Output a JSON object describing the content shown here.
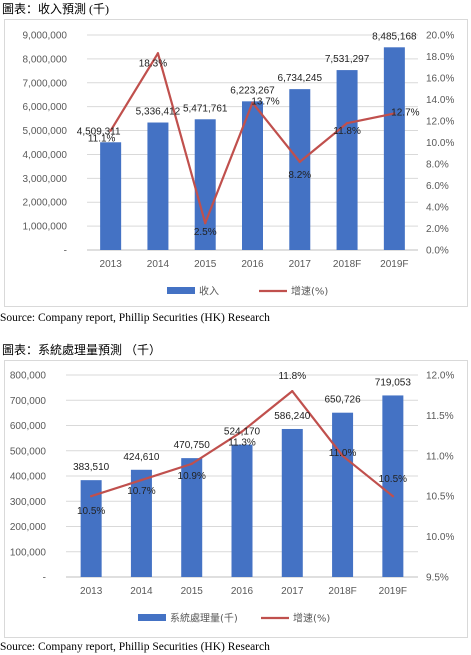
{
  "chart_data": [
    {
      "type": "bar",
      "title": "圖表：收入預測 (千)",
      "categories": [
        "2013",
        "2014",
        "2015",
        "2016",
        "2017",
        "2018F",
        "2019F"
      ],
      "series": [
        {
          "name": "收入",
          "type": "bar",
          "axis": "left",
          "values": [
            4509311,
            5336412,
            5471761,
            6223267,
            6734245,
            7531297,
            8485168
          ],
          "labels": [
            "4,509,311",
            "5,336,412",
            "5,471,761",
            "6,223,267",
            "6,734,245",
            "7,531,297",
            "8,485,168"
          ]
        },
        {
          "name": "增速(%)",
          "type": "line",
          "axis": "right",
          "values": [
            11.1,
            18.3,
            2.5,
            13.7,
            8.2,
            11.8,
            12.7
          ],
          "labels": [
            "11.1%",
            "18.3%",
            "2.5%",
            "13.7%",
            "8.2%",
            "11.8%",
            "12.7%"
          ]
        }
      ],
      "ylim_left": [
        0,
        9000000
      ],
      "ylim_right": [
        0,
        20
      ],
      "yticks_left": [
        "-",
        "1,000,000",
        "2,000,000",
        "3,000,000",
        "4,000,000",
        "5,000,000",
        "6,000,000",
        "7,000,000",
        "8,000,000",
        "9,000,000"
      ],
      "yticks_right": [
        "0.0%",
        "2.0%",
        "4.0%",
        "6.0%",
        "8.0%",
        "10.0%",
        "12.0%",
        "14.0%",
        "16.0%",
        "18.0%",
        "20.0%"
      ],
      "grid": true,
      "legend_position": "bottom",
      "source": "Source: Company report, Phillip Securities (HK) Research",
      "colors": {
        "bar": "#4472C4",
        "line": "#C0504D"
      }
    },
    {
      "type": "bar",
      "title": "圖表：系統處理量預測 （千）",
      "categories": [
        "2013",
        "2014",
        "2015",
        "2016",
        "2017",
        "2018F",
        "2019F"
      ],
      "series": [
        {
          "name": "系統處理量(千)",
          "type": "bar",
          "axis": "left",
          "values": [
            383510,
            424610,
            470750,
            524170,
            586240,
            650726,
            719053
          ],
          "labels": [
            "383,510",
            "424,610",
            "470,750",
            "524,170",
            "586,240",
            "650,726",
            "719,053"
          ]
        },
        {
          "name": "增速(%)",
          "type": "line",
          "axis": "right",
          "values": [
            10.5,
            10.7,
            10.9,
            11.3,
            11.8,
            11.0,
            10.5
          ],
          "labels": [
            "10.5%",
            "10.7%",
            "10.9%",
            "11.3%",
            "11.8%",
            "11.0%",
            "10.5%"
          ]
        }
      ],
      "ylim_left": [
        0,
        800000
      ],
      "ylim_right": [
        9.5,
        12.0
      ],
      "yticks_left": [
        "-",
        "100,000",
        "200,000",
        "300,000",
        "400,000",
        "500,000",
        "600,000",
        "700,000",
        "800,000"
      ],
      "yticks_right": [
        "9.5%",
        "10.0%",
        "10.5%",
        "11.0%",
        "11.5%",
        "12.0%"
      ],
      "grid": true,
      "legend_position": "bottom",
      "source": "Source: Company report, Phillip Securities (HK) Research",
      "colors": {
        "bar": "#4472C4",
        "line": "#C0504D"
      }
    }
  ]
}
